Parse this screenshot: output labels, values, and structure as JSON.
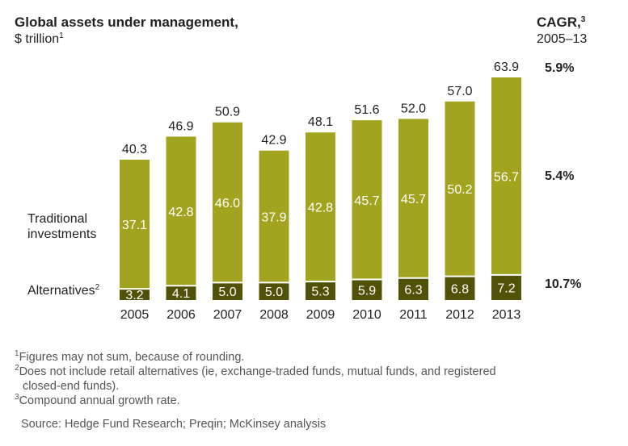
{
  "header": {
    "title": "Global assets under management,",
    "unit": "$ trillion",
    "unit_note": "1",
    "cagr_title": "CAGR,",
    "cagr_note": "3",
    "cagr_period": "2005–13"
  },
  "labels": {
    "traditional_line1": "Traditional",
    "traditional_line2": "investments",
    "alternatives": "Alternatives",
    "alternatives_note": "2"
  },
  "colors": {
    "traditional": "#a2a41f",
    "alternatives": "#515208",
    "text": "#222222"
  },
  "chart_data": {
    "type": "bar",
    "stacked": true,
    "categories": [
      "2005",
      "2006",
      "2007",
      "2008",
      "2009",
      "2010",
      "2011",
      "2012",
      "2013"
    ],
    "series": [
      {
        "name": "Alternatives",
        "values": [
          3.2,
          4.1,
          5.0,
          5.0,
          5.3,
          5.9,
          6.3,
          6.8,
          7.2
        ]
      },
      {
        "name": "Traditional investments",
        "values": [
          37.1,
          42.8,
          46.0,
          37.9,
          42.8,
          45.7,
          45.7,
          50.2,
          56.7
        ]
      }
    ],
    "totals": [
      40.3,
      46.9,
      50.9,
      42.9,
      48.1,
      51.6,
      52.0,
      57.0,
      63.9
    ],
    "value_labels": {
      "Alternatives": [
        "3.2",
        "4.1",
        "5.0",
        "5.0",
        "5.3",
        "5.9",
        "6.3",
        "6.8",
        "7.2"
      ],
      "Traditional investments": [
        "37.1",
        "42.8",
        "46.0",
        "37.9",
        "42.8",
        "45.7",
        "45.7",
        "50.2",
        "56.7"
      ],
      "totals": [
        "40.3",
        "46.9",
        "50.9",
        "42.9",
        "48.1",
        "51.6",
        "52.0",
        "57.0",
        "63.9"
      ]
    },
    "cagr": {
      "total": "5.9%",
      "traditional": "5.4%",
      "alternatives": "10.7%"
    },
    "title": "Global assets under management, $ trillion",
    "ylim": [
      0,
      63.9
    ]
  },
  "footnotes": {
    "n1_mark": "1",
    "n1": "Figures may not sum, because of rounding.",
    "n2_mark": "2",
    "n2_line1": "Does not include retail alternatives (ie, exchange-traded funds, mutual funds, and registered",
    "n2_line2": "closed-end funds).",
    "n3_mark": "3",
    "n3": "Compound annual growth rate."
  },
  "source": "Source: Hedge Fund Research; Preqin; McKinsey analysis"
}
